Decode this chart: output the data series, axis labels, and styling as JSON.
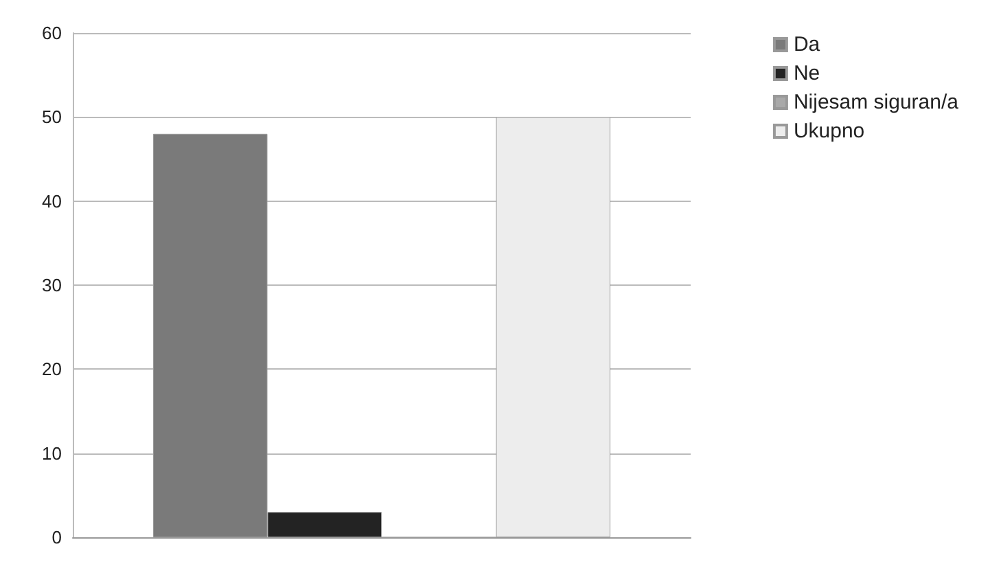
{
  "chart_data": {
    "type": "bar",
    "categories": [
      null
    ],
    "series": [
      {
        "name": "Da",
        "color": "#7a7a7a",
        "values": [
          48
        ]
      },
      {
        "name": "Ne",
        "color": "#232323",
        "values": [
          3
        ]
      },
      {
        "name": "Nijesam siguran/a",
        "color": "#a9a9a9",
        "values": [
          0
        ]
      },
      {
        "name": "Ukupno",
        "color": "#ededed",
        "values": [
          50
        ]
      }
    ],
    "ylim": [
      0,
      60
    ],
    "yticks": [
      0,
      10,
      20,
      30,
      40,
      50,
      60
    ],
    "grid": "y",
    "legend": "right"
  }
}
